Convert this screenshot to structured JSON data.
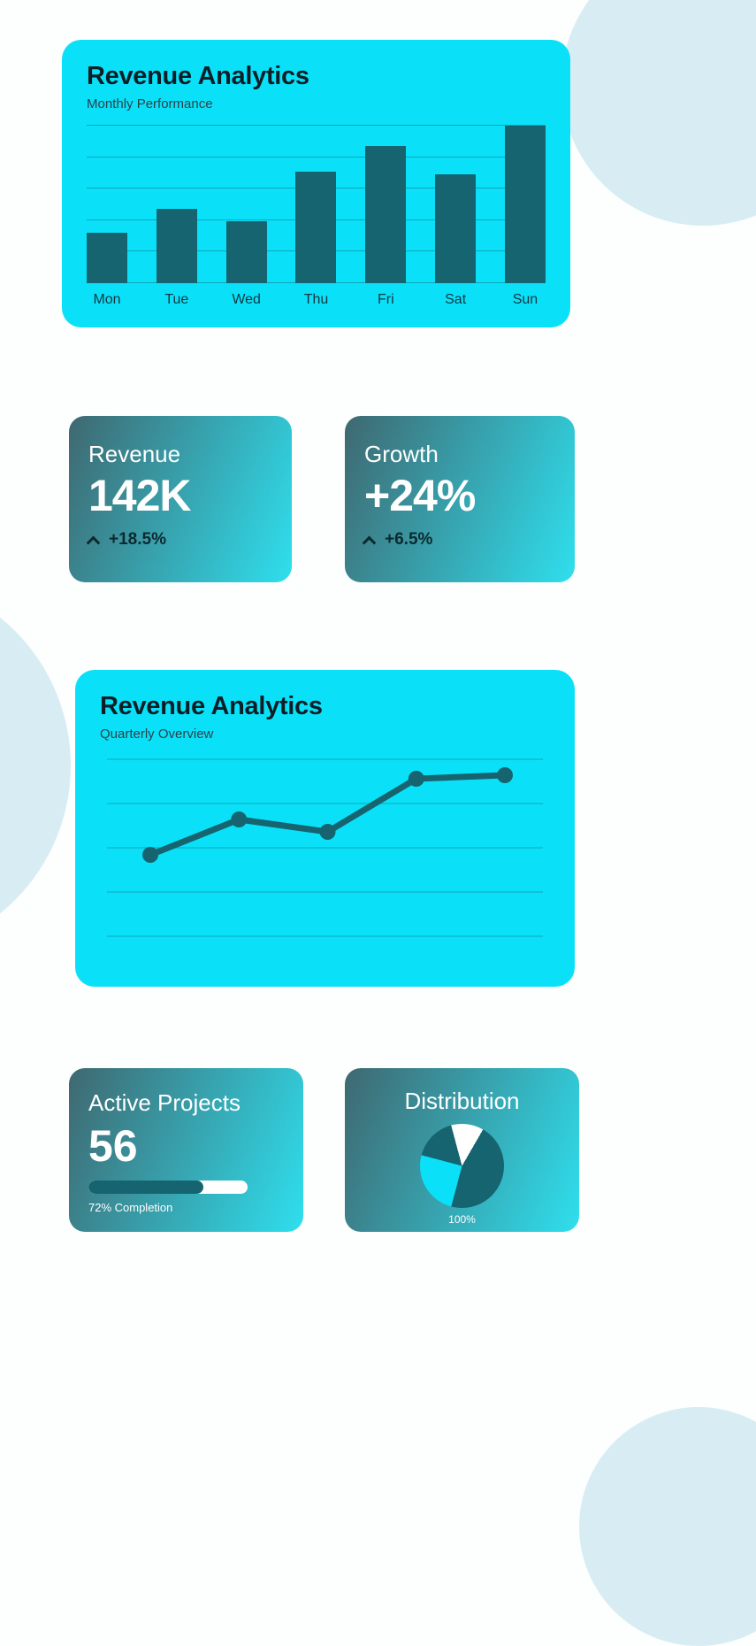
{
  "colors": {
    "cyan_card": "#0ae1f8",
    "teal": "#156470",
    "card_gradient_start": "#3f6870",
    "card_gradient_end": "#2fdfee",
    "background_circle": "#d8edf3",
    "text_dark": "#0c1f27",
    "text_white": "#ffffff"
  },
  "chart_data": [
    {
      "type": "bar",
      "title": "Revenue Analytics",
      "subtitle": "Monthly Performance",
      "categories": [
        "Mon",
        "Tue",
        "Wed",
        "Thu",
        "Fri",
        "Sat",
        "Sun"
      ],
      "values": [
        32,
        47,
        39,
        71,
        87,
        69,
        100
      ],
      "ylim": [
        0,
        100
      ],
      "grid": true,
      "gridline_count": 6,
      "bar_color": "#156470"
    },
    {
      "type": "line",
      "title": "Revenue Analytics",
      "subtitle": "Quarterly Overview",
      "x": [
        1,
        2,
        3,
        4,
        5
      ],
      "values": [
        46,
        66,
        59,
        89,
        91
      ],
      "ylim": [
        0,
        100
      ],
      "grid": true,
      "gridline_count": 5,
      "line_color": "#156470"
    },
    {
      "type": "pie",
      "title": "Distribution",
      "label": "100%",
      "start_angle": -15,
      "slices": [
        {
          "name": "top-white-slice",
          "percent": 12.5,
          "color": "#ffffff"
        },
        {
          "name": "teal-slice-right",
          "percent": 45.8,
          "color": "#156470"
        },
        {
          "name": "cyan-slice-lower-left",
          "percent": 25,
          "color": "#0ae1f8"
        },
        {
          "name": "teal-slice-upper-left",
          "percent": 16.7,
          "color": "#156470"
        }
      ]
    }
  ],
  "stat_cards": [
    {
      "label": "Revenue",
      "value": "142K",
      "delta": "+18.5%"
    },
    {
      "label": "Growth",
      "value": "+24%",
      "delta": "+6.5%"
    }
  ],
  "projects_card": {
    "title": "Active Projects",
    "value": "56",
    "progress_percent": 72,
    "progress_label": "72% Completion"
  }
}
